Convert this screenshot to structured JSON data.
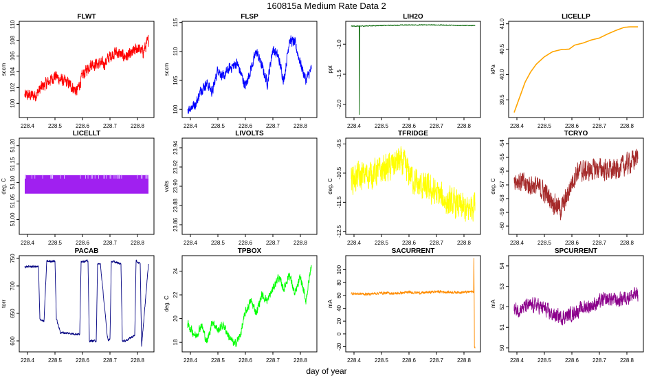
{
  "figure": {
    "title": "160815a   Medium Rate Data 2",
    "xlabel": "day of year"
  },
  "chart_data": [
    {
      "type": "line",
      "title": "FLWT",
      "ylabel": "sccm",
      "color": "#ff0000",
      "xlim": [
        228.37,
        228.86
      ],
      "ylim": [
        98.2,
        110.4
      ],
      "xticks": [
        "228.4",
        "228.5",
        "228.6",
        "228.7",
        "228.8"
      ],
      "yticks": [
        "100",
        "102",
        "104",
        "106",
        "108",
        "110"
      ],
      "noise": 1.1,
      "x": [
        228.39,
        228.43,
        228.45,
        228.47,
        228.5,
        228.52,
        228.55,
        228.58,
        228.6,
        228.63,
        228.65,
        228.68,
        228.7,
        228.72,
        228.75,
        228.77,
        228.8,
        228.82,
        228.84
      ],
      "y": [
        101.0,
        101.0,
        102.0,
        102.5,
        103.5,
        103.0,
        102.5,
        101.5,
        103.5,
        105.0,
        105.0,
        105.0,
        106.0,
        106.5,
        106.0,
        106.0,
        107.0,
        106.5,
        108.0
      ]
    },
    {
      "type": "line",
      "title": "FLSP",
      "ylabel": "sccm",
      "color": "#0000ff",
      "xlim": [
        228.37,
        228.86
      ],
      "ylim": [
        98.6,
        115.2
      ],
      "xticks": [
        "228.4",
        "228.5",
        "228.6",
        "228.7",
        "228.8"
      ],
      "yticks": [
        "100",
        "105",
        "110",
        "115"
      ],
      "noise": 1.3,
      "x": [
        228.39,
        228.42,
        228.44,
        228.46,
        228.48,
        228.5,
        228.52,
        228.54,
        228.57,
        228.6,
        228.62,
        228.64,
        228.66,
        228.68,
        228.7,
        228.72,
        228.74,
        228.76,
        228.78,
        228.8,
        228.82,
        228.84
      ],
      "y": [
        100.0,
        101.0,
        103.5,
        104.5,
        103.0,
        107.0,
        105.5,
        107.0,
        108.0,
        104.0,
        107.0,
        110.0,
        107.5,
        104.5,
        110.5,
        109.0,
        105.0,
        112.0,
        111.5,
        108.0,
        105.0,
        107.0
      ]
    },
    {
      "type": "line",
      "title": "LIH2O",
      "ylabel": "ppt",
      "color": "#006400",
      "xlim": [
        228.37,
        228.86
      ],
      "ylim": [
        -2.22,
        -0.62
      ],
      "xticks": [
        "228.4",
        "228.5",
        "228.6",
        "228.7",
        "228.8"
      ],
      "yticks": [
        "-1.0",
        "-1.5",
        "-2.0"
      ],
      "noise": 0.01,
      "x": [
        228.39,
        228.419,
        228.42,
        228.421,
        228.5,
        228.6,
        228.7,
        228.8,
        228.84
      ],
      "y": [
        -0.7,
        -0.7,
        -2.17,
        -0.7,
        -0.69,
        -0.68,
        -0.68,
        -0.69,
        -0.69
      ]
    },
    {
      "type": "line",
      "title": "LICELLP",
      "ylabel": "kPa",
      "color": "#ffa500",
      "xlim": [
        228.37,
        228.86
      ],
      "ylim": [
        39.15,
        41.05
      ],
      "xticks": [
        "228.4",
        "228.5",
        "228.6",
        "228.7",
        "228.8"
      ],
      "yticks": [
        "39.5",
        "40.0",
        "40.5",
        "41.0"
      ],
      "noise": 0.0,
      "x": [
        228.39,
        228.41,
        228.43,
        228.45,
        228.47,
        228.5,
        228.53,
        228.56,
        228.59,
        228.61,
        228.64,
        228.67,
        228.7,
        228.73,
        228.76,
        228.79,
        228.81,
        228.84
      ],
      "y": [
        39.25,
        39.55,
        39.85,
        40.05,
        40.2,
        40.35,
        40.45,
        40.49,
        40.5,
        40.58,
        40.62,
        40.68,
        40.72,
        40.8,
        40.87,
        40.93,
        40.94,
        40.94
      ]
    },
    {
      "type": "band",
      "title": "LICELLT",
      "ylabel": "deg. C",
      "color": "#a020f0",
      "xlim": [
        228.37,
        228.86
      ],
      "ylim": [
        50.96,
        51.22
      ],
      "xticks": [
        "228.4",
        "228.5",
        "228.6",
        "228.7",
        "228.8"
      ],
      "yticks": [
        "51.00",
        "51.05",
        "51.10",
        "51.15",
        "51.20"
      ],
      "x": [
        228.39,
        228.84
      ],
      "y_low": 51.07,
      "y_high": 51.12
    },
    {
      "type": "empty",
      "title": "LIVOLTS",
      "ylabel": "volts",
      "xlim": [
        228.37,
        228.86
      ],
      "ylim": [
        23.85,
        23.95
      ],
      "xticks": [
        "228.4",
        "228.5",
        "228.6",
        "228.7",
        "228.8"
      ],
      "yticks": [
        "23.86",
        "23.88",
        "23.90",
        "23.92",
        "23.94"
      ]
    },
    {
      "type": "line",
      "title": "TFRIDGE",
      "ylabel": "deg. C",
      "color": "#ffff00",
      "xlim": [
        228.37,
        228.86
      ],
      "ylim": [
        -12.6,
        -9.3
      ],
      "xticks": [
        "228.4",
        "228.5",
        "228.6",
        "228.7",
        "228.8"
      ],
      "yticks": [
        "-9.5",
        "-10.5",
        "-11.5",
        "-12.5"
      ],
      "noise": 0.7,
      "x": [
        228.39,
        228.43,
        228.47,
        228.5,
        228.53,
        228.56,
        228.58,
        228.6,
        228.63,
        228.66,
        228.7,
        228.74,
        228.78,
        228.81,
        228.84
      ],
      "y": [
        -10.7,
        -10.6,
        -10.5,
        -10.4,
        -10.3,
        -10.1,
        -10.2,
        -10.5,
        -10.9,
        -11.0,
        -11.2,
        -11.5,
        -11.6,
        -11.8,
        -11.5
      ]
    },
    {
      "type": "line",
      "title": "TCRYO",
      "ylabel": "deg. C",
      "color": "#a52a2a",
      "xlim": [
        228.37,
        228.86
      ],
      "ylim": [
        -60.6,
        -53.6
      ],
      "xticks": [
        "228.4",
        "228.5",
        "228.6",
        "228.7",
        "228.8"
      ],
      "yticks": [
        "-54",
        "-55",
        "-56",
        "-57",
        "-58",
        "-59",
        "-60"
      ],
      "noise": 1.1,
      "x": [
        228.39,
        228.43,
        228.46,
        228.5,
        228.53,
        228.56,
        228.58,
        228.6,
        228.62,
        228.65,
        228.7,
        228.75,
        228.8,
        228.84
      ],
      "y": [
        -56.5,
        -57.0,
        -57.0,
        -57.5,
        -58.2,
        -58.8,
        -58.0,
        -56.8,
        -56.0,
        -56.0,
        -55.8,
        -56.0,
        -55.5,
        -55.0
      ]
    },
    {
      "type": "line",
      "title": "PACAB",
      "ylabel": "torr",
      "color": "#000080",
      "xlim": [
        228.37,
        228.86
      ],
      "ylim": [
        580,
        755
      ],
      "xticks": [
        "228.4",
        "228.5",
        "228.6",
        "228.7",
        "228.8"
      ],
      "yticks": [
        "600",
        "650",
        "700",
        "750"
      ],
      "noise": 3,
      "x": [
        228.39,
        228.44,
        228.445,
        228.46,
        228.47,
        228.475,
        228.5,
        228.505,
        228.52,
        228.525,
        228.59,
        228.595,
        228.62,
        228.625,
        228.65,
        228.655,
        228.66,
        228.665,
        228.69,
        228.695,
        228.7,
        228.705,
        228.74,
        228.745,
        228.75,
        228.755,
        228.79,
        228.795,
        228.81,
        228.815,
        228.84
      ],
      "y": [
        735,
        735,
        640,
        635,
        745,
        745,
        745,
        640,
        615,
        615,
        612,
        745,
        745,
        600,
        600,
        740,
        740,
        740,
        610,
        600,
        605,
        745,
        740,
        600,
        600,
        600,
        610,
        745,
        740,
        590,
        740
      ]
    },
    {
      "type": "line",
      "title": "TPBOX",
      "ylabel": "deg. C",
      "color": "#00ff00",
      "xlim": [
        228.37,
        228.86
      ],
      "ylim": [
        17.2,
        25.3
      ],
      "xticks": [
        "228.4",
        "228.5",
        "228.6",
        "228.7",
        "228.8"
      ],
      "yticks": [
        "18",
        "20",
        "22",
        "24"
      ],
      "noise": 0.5,
      "x": [
        228.39,
        228.42,
        228.44,
        228.46,
        228.48,
        228.5,
        228.52,
        228.54,
        228.56,
        228.58,
        228.6,
        228.62,
        228.64,
        228.66,
        228.68,
        228.7,
        228.72,
        228.74,
        228.76,
        228.78,
        228.8,
        228.82,
        228.84
      ],
      "y": [
        19.5,
        18.5,
        19.5,
        18.0,
        19.8,
        19.0,
        19.5,
        18.5,
        17.8,
        18.5,
        20.5,
        21.5,
        20.5,
        22.0,
        21.5,
        22.5,
        23.5,
        22.5,
        23.8,
        22.0,
        23.5,
        21.5,
        24.5
      ]
    },
    {
      "type": "line",
      "title": "SACURRENT",
      "ylabel": "mA",
      "color": "#ff8c00",
      "xlim": [
        228.37,
        228.86
      ],
      "ylim": [
        -28,
        122
      ],
      "xticks": [
        "228.4",
        "228.5",
        "228.6",
        "228.7",
        "228.8"
      ],
      "yticks": [
        "-20",
        "0",
        "20",
        "40",
        "60",
        "80",
        "100"
      ],
      "noise": 3,
      "x": [
        228.39,
        228.45,
        228.5,
        228.55,
        228.6,
        228.65,
        228.7,
        228.75,
        228.8,
        228.835,
        228.836,
        228.837,
        228.838,
        228.84
      ],
      "y": [
        63,
        62,
        64,
        63,
        65,
        64,
        66,
        65,
        65,
        66,
        118,
        66,
        -20,
        -20
      ]
    },
    {
      "type": "line",
      "title": "SPCURRENT",
      "ylabel": "mA",
      "color": "#8b008b",
      "xlim": [
        228.37,
        228.86
      ],
      "ylim": [
        49.8,
        54.5
      ],
      "xticks": [
        "228.4",
        "228.5",
        "228.6",
        "228.7",
        "228.8"
      ],
      "yticks": [
        "50",
        "51",
        "52",
        "53",
        "54"
      ],
      "noise": 0.5,
      "x": [
        228.39,
        228.43,
        228.47,
        228.5,
        228.53,
        228.56,
        228.59,
        228.62,
        228.65,
        228.68,
        228.71,
        228.74,
        228.77,
        228.8,
        228.84
      ],
      "y": [
        51.8,
        52.0,
        52.1,
        51.9,
        51.6,
        51.5,
        51.6,
        51.8,
        52.0,
        52.1,
        52.3,
        52.4,
        52.3,
        52.5,
        52.6
      ]
    }
  ]
}
